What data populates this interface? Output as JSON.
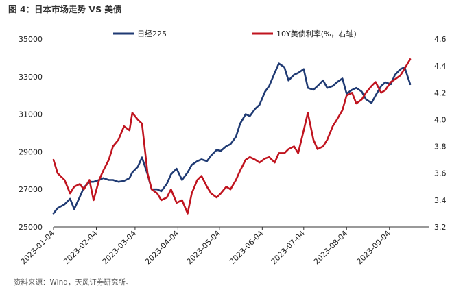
{
  "figure": {
    "title": "图 4：日本市场走势 VS 美债",
    "source": "资料来源：Wind，天风证券研究所。"
  },
  "colors": {
    "nikkei": "#1f3a73",
    "us10y": "#c0141f",
    "rule": "#e8a04c"
  },
  "chart_data": {
    "type": "line",
    "title": "",
    "x_ticks": [
      "2023-01-04",
      "2023-02-04",
      "2023-03-04",
      "2023-04-04",
      "2023-05-04",
      "2023-06-04",
      "2023-07-04",
      "2023-08-04",
      "2023-09-04"
    ],
    "y_left": {
      "label": "",
      "ticks": [
        "25000",
        "27000",
        "29000",
        "31000",
        "33000",
        "35000"
      ],
      "range": [
        25000,
        35000
      ]
    },
    "y_right": {
      "label": "",
      "ticks": [
        "3.2",
        "3.4",
        "3.6",
        "3.8",
        "4.0",
        "4.2",
        "4.4",
        "4.6"
      ],
      "range": [
        3.2,
        4.6
      ]
    },
    "legend": [
      "日经225",
      "10Y美债利率(%，右轴)"
    ],
    "legend_placement": "top",
    "grid": false,
    "series": [
      {
        "name": "日经225",
        "axis": "left",
        "x": [
          "2023-01-04",
          "2023-01-07",
          "2023-01-12",
          "2023-01-16",
          "2023-01-19",
          "2023-01-23",
          "2023-01-26",
          "2023-01-30",
          "2023-02-02",
          "2023-02-06",
          "2023-02-09",
          "2023-02-13",
          "2023-02-16",
          "2023-02-20",
          "2023-02-24",
          "2023-02-28",
          "2023-03-02",
          "2023-03-06",
          "2023-03-09",
          "2023-03-13",
          "2023-03-16",
          "2023-03-20",
          "2023-03-23",
          "2023-03-27",
          "2023-03-30",
          "2023-04-03",
          "2023-04-07",
          "2023-04-11",
          "2023-04-14",
          "2023-04-18",
          "2023-04-21",
          "2023-04-25",
          "2023-04-28",
          "2023-05-02",
          "2023-05-05",
          "2023-05-09",
          "2023-05-12",
          "2023-05-16",
          "2023-05-19",
          "2023-05-23",
          "2023-05-26",
          "2023-05-30",
          "2023-06-02",
          "2023-06-06",
          "2023-06-09",
          "2023-06-13",
          "2023-06-16",
          "2023-06-20",
          "2023-06-23",
          "2023-06-27",
          "2023-06-30",
          "2023-07-04",
          "2023-07-07",
          "2023-07-11",
          "2023-07-14",
          "2023-07-18",
          "2023-07-21",
          "2023-07-25",
          "2023-07-28",
          "2023-08-01",
          "2023-08-04",
          "2023-08-08",
          "2023-08-11",
          "2023-08-15",
          "2023-08-18",
          "2023-08-22",
          "2023-08-25",
          "2023-08-29",
          "2023-09-01",
          "2023-09-05",
          "2023-09-08",
          "2023-09-12",
          "2023-09-15",
          "2023-09-19"
        ],
        "y": [
          25720,
          26000,
          26200,
          26500,
          25950,
          26600,
          27100,
          27400,
          27400,
          27500,
          27600,
          27500,
          27500,
          27400,
          27450,
          27600,
          27900,
          28200,
          28700,
          27800,
          27000,
          27000,
          26900,
          27300,
          27800,
          28100,
          27500,
          27900,
          28300,
          28500,
          28600,
          28500,
          28800,
          29100,
          29050,
          29300,
          29400,
          29800,
          30500,
          31000,
          30900,
          31300,
          31500,
          32200,
          32500,
          33200,
          33700,
          33500,
          32800,
          33100,
          33200,
          33400,
          32400,
          32300,
          32500,
          32800,
          32400,
          32500,
          32700,
          32900,
          32100,
          32300,
          32400,
          32200,
          31800,
          31600,
          32000,
          32500,
          32700,
          32600,
          33100,
          33400,
          33500,
          32600
        ]
      },
      {
        "name": "10Y美债利率(%，右轴)",
        "axis": "right",
        "x": [
          "2023-01-04",
          "2023-01-07",
          "2023-01-12",
          "2023-01-16",
          "2023-01-19",
          "2023-01-23",
          "2023-01-26",
          "2023-01-30",
          "2023-02-02",
          "2023-02-06",
          "2023-02-09",
          "2023-02-13",
          "2023-02-16",
          "2023-02-20",
          "2023-02-24",
          "2023-02-28",
          "2023-03-02",
          "2023-03-06",
          "2023-03-09",
          "2023-03-13",
          "2023-03-16",
          "2023-03-20",
          "2023-03-23",
          "2023-03-27",
          "2023-03-30",
          "2023-04-03",
          "2023-04-07",
          "2023-04-11",
          "2023-04-14",
          "2023-04-18",
          "2023-04-21",
          "2023-04-25",
          "2023-04-28",
          "2023-05-02",
          "2023-05-05",
          "2023-05-09",
          "2023-05-12",
          "2023-05-16",
          "2023-05-19",
          "2023-05-23",
          "2023-05-26",
          "2023-05-30",
          "2023-06-02",
          "2023-06-06",
          "2023-06-09",
          "2023-06-13",
          "2023-06-16",
          "2023-06-20",
          "2023-06-23",
          "2023-06-27",
          "2023-06-30",
          "2023-07-04",
          "2023-07-07",
          "2023-07-11",
          "2023-07-14",
          "2023-07-18",
          "2023-07-21",
          "2023-07-25",
          "2023-07-28",
          "2023-08-01",
          "2023-08-04",
          "2023-08-08",
          "2023-08-11",
          "2023-08-15",
          "2023-08-18",
          "2023-08-22",
          "2023-08-25",
          "2023-08-29",
          "2023-09-01",
          "2023-09-05",
          "2023-09-08",
          "2023-09-12",
          "2023-09-15",
          "2023-09-19"
        ],
        "y": [
          3.7,
          3.6,
          3.55,
          3.45,
          3.5,
          3.52,
          3.48,
          3.55,
          3.4,
          3.55,
          3.62,
          3.7,
          3.8,
          3.85,
          3.95,
          3.92,
          4.05,
          4.0,
          3.97,
          3.6,
          3.48,
          3.45,
          3.4,
          3.42,
          3.48,
          3.38,
          3.4,
          3.3,
          3.45,
          3.55,
          3.58,
          3.5,
          3.45,
          3.42,
          3.45,
          3.5,
          3.48,
          3.55,
          3.62,
          3.7,
          3.72,
          3.7,
          3.68,
          3.71,
          3.72,
          3.68,
          3.75,
          3.75,
          3.78,
          3.8,
          3.75,
          3.92,
          4.05,
          3.85,
          3.78,
          3.8,
          3.85,
          3.95,
          4.0,
          4.07,
          4.18,
          4.2,
          4.12,
          4.15,
          4.2,
          4.25,
          4.28,
          4.2,
          4.22,
          4.28,
          4.3,
          4.33,
          4.38,
          4.45
        ]
      }
    ]
  }
}
